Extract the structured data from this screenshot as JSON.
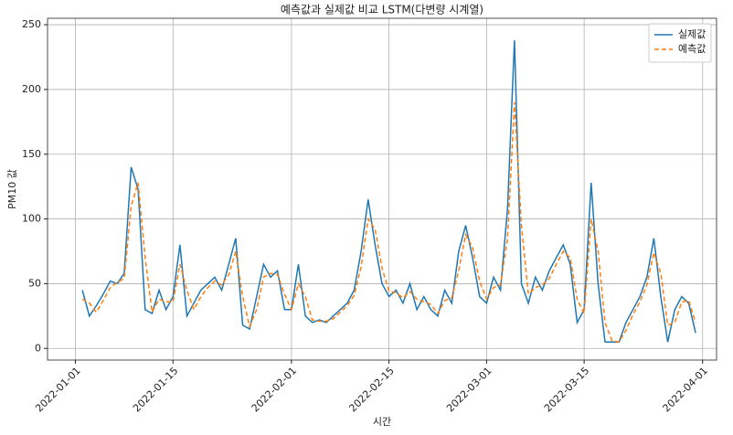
{
  "chart_data": {
    "type": "line",
    "title": "예측값과 실제값 비교 LSTM(다변량 시계열)",
    "x_label": "시간",
    "y_label": "PM10 값",
    "x": [
      "2022-01-02",
      "2022-01-03",
      "2022-01-04",
      "2022-01-05",
      "2022-01-06",
      "2022-01-07",
      "2022-01-08",
      "2022-01-09",
      "2022-01-10",
      "2022-01-11",
      "2022-01-12",
      "2022-01-13",
      "2022-01-14",
      "2022-01-15",
      "2022-01-16",
      "2022-01-17",
      "2022-01-18",
      "2022-01-19",
      "2022-01-20",
      "2022-01-21",
      "2022-01-22",
      "2022-01-23",
      "2022-01-24",
      "2022-01-25",
      "2022-01-26",
      "2022-01-27",
      "2022-01-28",
      "2022-01-29",
      "2022-01-30",
      "2022-01-31",
      "2022-02-01",
      "2022-02-02",
      "2022-02-03",
      "2022-02-04",
      "2022-02-05",
      "2022-02-06",
      "2022-02-07",
      "2022-02-08",
      "2022-02-09",
      "2022-02-10",
      "2022-02-11",
      "2022-02-12",
      "2022-02-13",
      "2022-02-14",
      "2022-02-15",
      "2022-02-16",
      "2022-02-17",
      "2022-02-18",
      "2022-02-19",
      "2022-02-20",
      "2022-02-21",
      "2022-02-22",
      "2022-02-23",
      "2022-02-24",
      "2022-02-25",
      "2022-02-26",
      "2022-02-27",
      "2022-02-28",
      "2022-03-01",
      "2022-03-02",
      "2022-03-03",
      "2022-03-04",
      "2022-03-05",
      "2022-03-06",
      "2022-03-07",
      "2022-03-08",
      "2022-03-09",
      "2022-03-10",
      "2022-03-11",
      "2022-03-12",
      "2022-03-13",
      "2022-03-14",
      "2022-03-15",
      "2022-03-16",
      "2022-03-17",
      "2022-03-18",
      "2022-03-19",
      "2022-03-20",
      "2022-03-21",
      "2022-03-22",
      "2022-03-23",
      "2022-03-24",
      "2022-03-25",
      "2022-03-26",
      "2022-03-27",
      "2022-03-28",
      "2022-03-29",
      "2022-03-30",
      "2022-03-31"
    ],
    "series": [
      {
        "name": "실제값",
        "color": "#1f77b4",
        "dash": false,
        "values": [
          45,
          25,
          33,
          42,
          52,
          50,
          58,
          140,
          123,
          30,
          27,
          45,
          30,
          40,
          80,
          25,
          35,
          45,
          50,
          55,
          45,
          65,
          85,
          18,
          15,
          40,
          65,
          55,
          60,
          30,
          30,
          65,
          25,
          20,
          22,
          20,
          25,
          30,
          35,
          45,
          75,
          115,
          80,
          50,
          40,
          45,
          35,
          50,
          30,
          40,
          30,
          25,
          45,
          35,
          75,
          95,
          70,
          40,
          35,
          55,
          45,
          108,
          238,
          50,
          35,
          55,
          45,
          60,
          70,
          80,
          65,
          20,
          30,
          128,
          50,
          5,
          5,
          5,
          20,
          30,
          40,
          55,
          85,
          40,
          5,
          30,
          40,
          35,
          12
        ]
      },
      {
        "name": "예측값",
        "color": "#ff7f0e",
        "dash": true,
        "values": [
          38,
          35,
          28,
          37,
          47,
          51,
          54,
          110,
          128,
          70,
          28,
          38,
          36,
          36,
          65,
          45,
          30,
          40,
          47,
          52,
          49,
          57,
          75,
          40,
          17,
          30,
          55,
          58,
          57,
          42,
          30,
          50,
          40,
          22,
          21,
          21,
          23,
          28,
          33,
          41,
          63,
          100,
          92,
          62,
          44,
          43,
          39,
          44,
          38,
          36,
          34,
          27,
          37,
          39,
          60,
          88,
          78,
          52,
          38,
          47,
          49,
          85,
          190,
          95,
          42,
          47,
          49,
          54,
          65,
          75,
          70,
          38,
          27,
          100,
          75,
          20,
          6,
          5,
          14,
          26,
          36,
          49,
          74,
          58,
          18,
          20,
          36,
          37,
          20
        ]
      }
    ],
    "xlim": [
      "2021-12-28",
      "2022-04-03"
    ],
    "xticks": [
      "2022-01-01",
      "2022-01-15",
      "2022-02-01",
      "2022-02-15",
      "2022-03-01",
      "2022-03-15",
      "2022-04-01"
    ],
    "ylim": [
      -9,
      255
    ],
    "yticks": [
      0,
      50,
      100,
      150,
      200,
      250
    ],
    "grid": true,
    "legend": "upper right"
  }
}
